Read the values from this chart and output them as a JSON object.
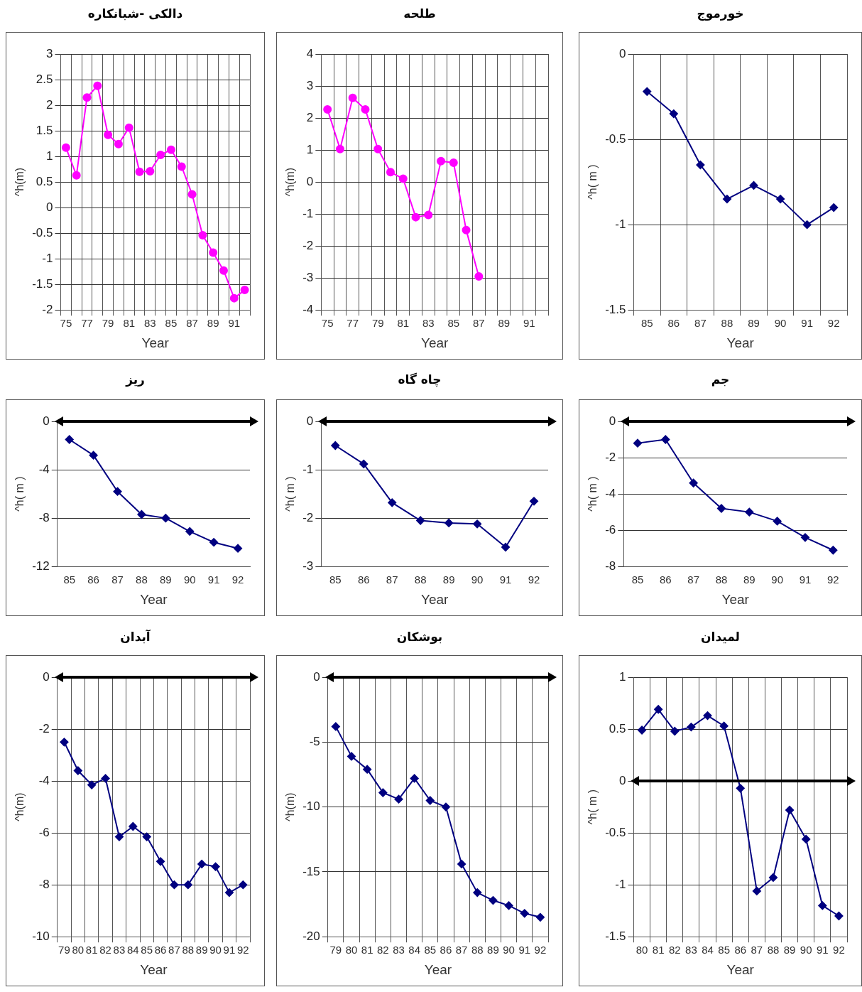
{
  "chart_data": [
    {
      "type": "line",
      "title": "دالکی -شبانکاره",
      "xlabel": "Year",
      "ylabel": "^h(m)",
      "categories": [
        "75",
        null,
        "77",
        null,
        "79",
        null,
        "81",
        null,
        "83",
        null,
        "85",
        null,
        "87",
        null,
        "89",
        null,
        "91",
        null
      ],
      "series": [
        {
          "color": "#ff00ff",
          "values": [
            1.17,
            0.63,
            2.15,
            2.38,
            1.42,
            1.24,
            1.56,
            0.7,
            0.71,
            1.03,
            1.13,
            0.8,
            0.26,
            -0.54,
            -0.88,
            -1.23,
            -1.77,
            -1.61
          ]
        }
      ],
      "ylim": [
        -2,
        3
      ],
      "yticks": [
        -2,
        -1.5,
        -1,
        -0.5,
        0,
        0.5,
        1,
        1.5,
        2,
        2.5,
        3
      ],
      "grid": true,
      "marker": "circle"
    },
    {
      "type": "line",
      "title": "طلحه",
      "xlabel": "Year",
      "ylabel": "^h(m)",
      "categories": [
        "75",
        null,
        "77",
        null,
        "79",
        null,
        "81",
        null,
        "83",
        null,
        "85",
        null,
        "87",
        null,
        "89",
        null,
        "91",
        null
      ],
      "series": [
        {
          "color": "#ff00ff",
          "values": [
            2.27,
            1.03,
            2.63,
            2.27,
            1.03,
            0.31,
            0.1,
            -1.1,
            -1.03,
            0.65,
            0.6,
            -1.5,
            -2.95,
            null,
            null,
            null,
            null,
            null
          ]
        }
      ],
      "ylim": [
        -4,
        4
      ],
      "yticks": [
        -4,
        -3,
        -2,
        -1,
        0,
        1,
        2,
        3,
        4
      ],
      "grid": true,
      "marker": "circle"
    },
    {
      "type": "line",
      "title": "خورموج",
      "xlabel": "Year",
      "ylabel": "^h( m )",
      "categories": [
        "85",
        "86",
        "87",
        "88",
        "89",
        "90",
        "91",
        "92"
      ],
      "series": [
        {
          "color": "#000080",
          "values": [
            -0.22,
            -0.35,
            -0.65,
            -0.85,
            -0.77,
            -0.85,
            -1.0,
            -0.9
          ]
        }
      ],
      "ylim": [
        -1.5,
        0
      ],
      "yticks": [
        -1.5,
        -1,
        -0.5,
        0
      ],
      "grid": true,
      "marker": "diamond"
    },
    {
      "type": "line",
      "title": "ریز",
      "xlabel": "Year",
      "ylabel": "^h( m )",
      "categories": [
        "85",
        "86",
        "87",
        "88",
        "89",
        "90",
        "91",
        "92"
      ],
      "series": [
        {
          "color": "#000080",
          "values": [
            -1.5,
            -2.8,
            -5.8,
            -7.7,
            -8.0,
            -9.1,
            -10.0,
            -10.5
          ]
        }
      ],
      "ylim": [
        -12,
        0
      ],
      "yticks": [
        -12,
        -8,
        -4,
        0
      ],
      "grid": "y",
      "marker": "diamond",
      "ref_lines": [
        {
          "axis": "y",
          "value": 0
        }
      ]
    },
    {
      "type": "line",
      "title": "چاه گاه",
      "xlabel": "Year",
      "ylabel": "^h( m )",
      "categories": [
        "85",
        "86",
        "87",
        "88",
        "89",
        "90",
        "91",
        "92"
      ],
      "series": [
        {
          "color": "#000080",
          "values": [
            -0.5,
            -0.88,
            -1.68,
            -2.05,
            -2.1,
            -2.12,
            -2.6,
            -1.65
          ]
        }
      ],
      "ylim": [
        -3,
        0
      ],
      "yticks": [
        -3,
        -2,
        -1,
        0
      ],
      "grid": "y",
      "marker": "diamond",
      "ref_lines": [
        {
          "axis": "y",
          "value": 0
        }
      ]
    },
    {
      "type": "line",
      "title": "جم",
      "xlabel": "Year",
      "ylabel": "^h( m )",
      "categories": [
        "85",
        "86",
        "87",
        "88",
        "89",
        "90",
        "91",
        "92"
      ],
      "series": [
        {
          "color": "#000080",
          "values": [
            -1.2,
            -1.0,
            -3.4,
            -4.8,
            -5.0,
            -5.5,
            -6.4,
            -7.1
          ]
        }
      ],
      "ylim": [
        -8,
        0
      ],
      "yticks": [
        -8,
        -6,
        -4,
        -2,
        0
      ],
      "grid": "y",
      "marker": "diamond",
      "ref_lines": [
        {
          "axis": "y",
          "value": 0
        }
      ]
    },
    {
      "type": "line",
      "title": "آبدان",
      "xlabel": "Year",
      "ylabel": "^h(m)",
      "categories": [
        "79",
        "80",
        "81",
        "82",
        "83",
        "84",
        "85",
        "86",
        "87",
        "88",
        "89",
        "90",
        "91",
        "92"
      ],
      "series": [
        {
          "color": "#000080",
          "values": [
            -2.5,
            -3.6,
            -4.15,
            -3.9,
            -6.15,
            -5.75,
            -6.15,
            -7.1,
            -8.0,
            -8.0,
            -7.2,
            -7.3,
            -8.3,
            -8.0
          ]
        }
      ],
      "ylim": [
        -10,
        0
      ],
      "yticks": [
        -10,
        -8,
        -6,
        -4,
        -2,
        0
      ],
      "grid": true,
      "marker": "diamond",
      "ref_lines": [
        {
          "axis": "y",
          "value": 0
        }
      ]
    },
    {
      "type": "line",
      "title": "بوشکان",
      "xlabel": "Year",
      "ylabel": "^h(m)",
      "categories": [
        "79",
        "80",
        "81",
        "82",
        "83",
        "84",
        "85",
        "86",
        "87",
        "88",
        "89",
        "90",
        "91",
        "92"
      ],
      "series": [
        {
          "color": "#000080",
          "values": [
            -3.8,
            -6.1,
            -7.1,
            -8.9,
            -9.4,
            -7.8,
            -9.5,
            -10.0,
            -14.4,
            -16.6,
            -17.2,
            -17.6,
            -18.2,
            -18.5
          ]
        }
      ],
      "ylim": [
        -20,
        0
      ],
      "yticks": [
        -20,
        -15,
        -10,
        -5,
        0
      ],
      "grid": true,
      "marker": "diamond",
      "ref_lines": [
        {
          "axis": "y",
          "value": 0
        }
      ]
    },
    {
      "type": "line",
      "title": "لمیدان",
      "xlabel": "Year",
      "ylabel": "^h( m )",
      "categories": [
        "80",
        "81",
        "82",
        "83",
        "84",
        "85",
        "86",
        "87",
        "88",
        "89",
        "90",
        "91",
        "92"
      ],
      "series": [
        {
          "color": "#000080",
          "values": [
            0.49,
            0.69,
            0.48,
            0.52,
            0.63,
            0.53,
            -0.07,
            -1.06,
            -0.93,
            -0.28,
            -0.56,
            -1.2,
            -1.3
          ]
        }
      ],
      "ylim": [
        -1.5,
        1
      ],
      "yticks": [
        -1.5,
        -1,
        -0.5,
        0,
        0.5,
        1
      ],
      "grid": true,
      "marker": "diamond",
      "ref_lines": [
        {
          "axis": "y",
          "value": 0
        }
      ]
    }
  ]
}
